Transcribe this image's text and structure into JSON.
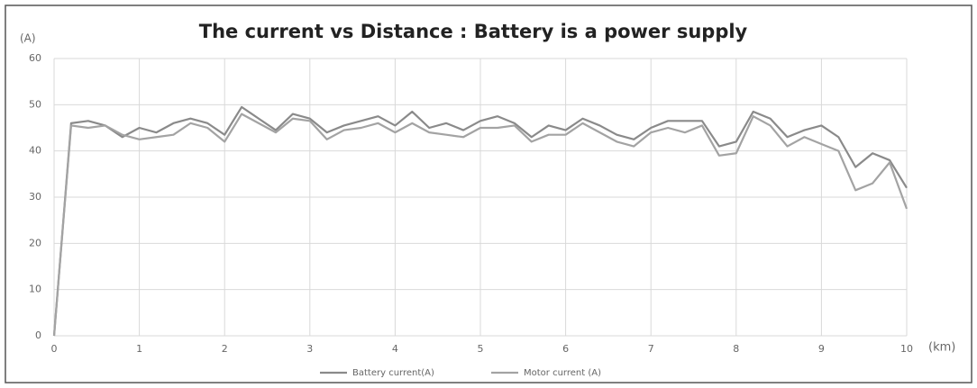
{
  "chart_data": {
    "type": "line",
    "title": "The current vs Distance : Battery is a power supply",
    "y_label": "(A)",
    "x_label": "(km)",
    "x": [
      0,
      0.2,
      0.4,
      0.6,
      0.8,
      1.0,
      1.2,
      1.4,
      1.6,
      1.8,
      2.0,
      2.2,
      2.4,
      2.6,
      2.8,
      3.0,
      3.2,
      3.4,
      3.6,
      3.8,
      4.0,
      4.2,
      4.4,
      4.6,
      4.8,
      5.0,
      5.2,
      5.4,
      5.6,
      5.8,
      6.0,
      6.2,
      6.4,
      6.6,
      6.8,
      7.0,
      7.2,
      7.4,
      7.6,
      7.8,
      8.0,
      8.2,
      8.4,
      8.6,
      8.8,
      9.0,
      9.2,
      9.4,
      9.6,
      9.8,
      10.0
    ],
    "series": [
      {
        "name": "Battery current(A)",
        "color": "#8a8a8a",
        "values": [
          0,
          46,
          46.5,
          45.5,
          43,
          45,
          44,
          46,
          47,
          46,
          43.5,
          49.5,
          47,
          44.5,
          48,
          47,
          44,
          45.5,
          46.5,
          47.5,
          45.5,
          48.5,
          45,
          46,
          44.5,
          46.5,
          47.5,
          46,
          43,
          45.5,
          44.5,
          47,
          45.5,
          43.5,
          42.5,
          45,
          46.5,
          46.5,
          46.5,
          41,
          42,
          48.5,
          47,
          43,
          44.5,
          45.5,
          43,
          36.5,
          39.5,
          38,
          32
        ]
      },
      {
        "name": "Motor current (A)",
        "color": "#a3a3a3",
        "values": [
          0,
          45.5,
          45,
          45.5,
          43.5,
          42.5,
          43,
          43.5,
          46,
          45,
          42,
          48,
          46,
          44,
          47,
          46.5,
          42.5,
          44.5,
          45,
          46,
          44,
          46,
          44,
          43.5,
          43,
          45,
          45,
          45.5,
          42,
          43.5,
          43.5,
          46,
          44,
          42,
          41,
          44,
          45,
          44,
          45.5,
          39,
          39.5,
          47.5,
          45.5,
          41,
          43,
          41.5,
          40,
          31.5,
          33,
          37.5,
          27.5
        ]
      }
    ],
    "xlim": [
      0,
      10
    ],
    "xticks": [
      0,
      1,
      2,
      3,
      4,
      5,
      6,
      7,
      8,
      9,
      10
    ],
    "ylim": [
      0,
      60
    ],
    "yticks": [
      0,
      10,
      20,
      30,
      40,
      50,
      60
    ],
    "grid": true,
    "legend": "bottom"
  }
}
